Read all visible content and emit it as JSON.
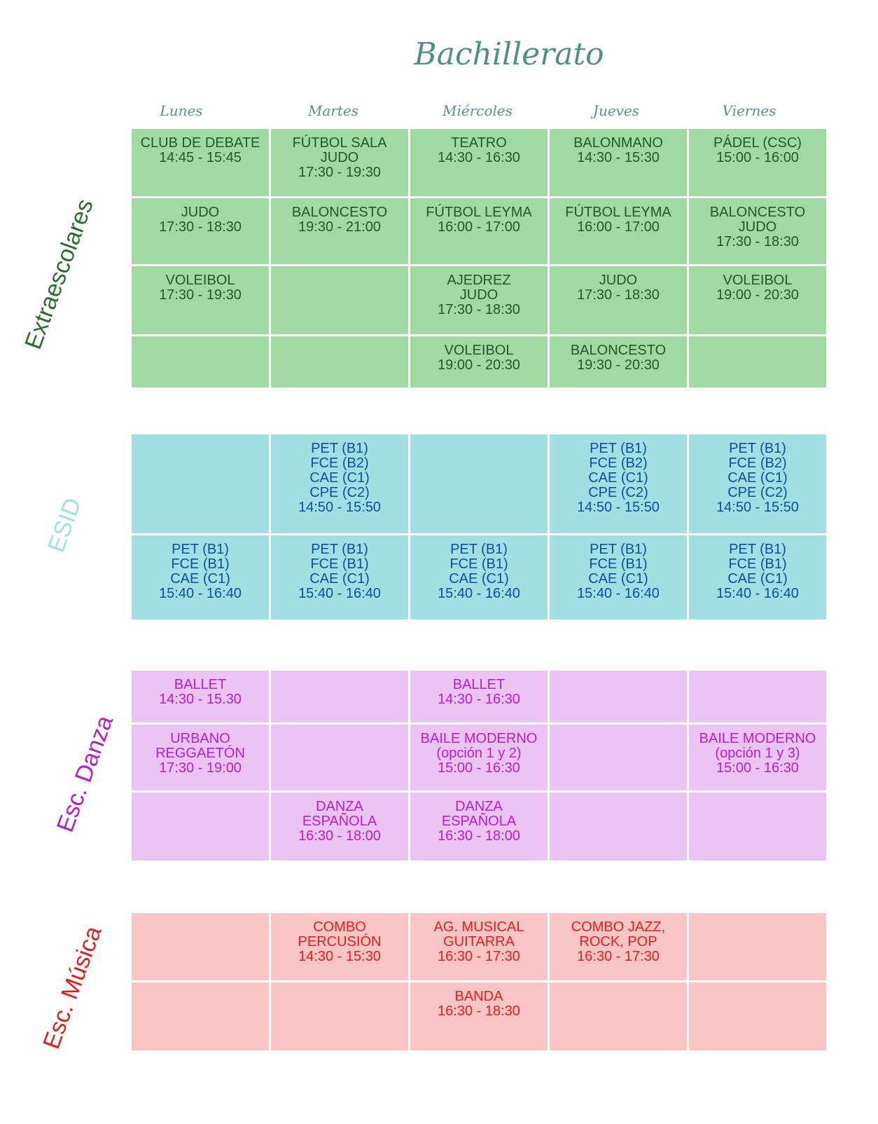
{
  "title": "Bachillerato",
  "days": [
    "Lunes",
    "Martes",
    "Miércoles",
    "Jueves",
    "Viernes"
  ],
  "sections": [
    {
      "name": "Extraescolares",
      "color": "#2e6b2e",
      "rows": [
        [
          "CLUB DE DEBATE\n14:45 - 15:45",
          "FÚTBOL SALA\nJUDO\n17:30 - 19:30",
          "TEATRO\n14:30 - 16:30",
          "BALONMANO\n14:30 - 15:30",
          "PÁDEL (CSC)\n15:00 - 16:00"
        ],
        [
          "JUDO\n17:30 - 18:30",
          "BALONCESTO\n19:30 - 21:00",
          "FÚTBOL LEYMA\n16:00 - 17:00",
          "FÚTBOL LEYMA\n16:00 - 17:00",
          "BALONCESTO\nJUDO\n17:30 - 18:30"
        ],
        [
          "VOLEIBOL\n17:30 - 19:30",
          "",
          "AJEDREZ\nJUDO\n17:30 - 18:30",
          "JUDO\n17:30 - 18:30",
          "VOLEIBOL\n19:00 - 20:30"
        ],
        [
          "",
          "",
          "VOLEIBOL\n19:00 - 20:30",
          "BALONCESTO\n19:30 - 20:30",
          ""
        ]
      ]
    },
    {
      "name": "ESID",
      "color": "#a2dfe2",
      "rows": [
        [
          "",
          "PET (B1)\nFCE (B2)\nCAE (C1)\nCPE (C2)\n14:50 - 15:50",
          "",
          "PET (B1)\nFCE (B2)\nCAE (C1)\nCPE (C2)\n14:50 - 15:50",
          "PET (B1)\nFCE (B2)\nCAE (C1)\nCPE (C2)\n14:50 - 15:50"
        ],
        [
          "PET (B1)\nFCE (B1)\nCAE (C1)\n15:40 - 16:40",
          "PET (B1)\nFCE (B1)\nCAE (C1)\n15:40 - 16:40",
          "PET (B1)\nFCE (B1)\nCAE (C1)\n15:40 - 16:40",
          "PET (B1)\nFCE (B1)\nCAE (C1)\n15:40 - 16:40",
          "PET (B1)\nFCE (B1)\nCAE (C1)\n15:40 - 16:40"
        ]
      ]
    },
    {
      "name": "Esc. Danza",
      "color": "#b21ecf",
      "rows": [
        [
          "BALLET\n14:30 - 15.30",
          "",
          "BALLET\n14:30 - 16:30",
          "",
          ""
        ],
        [
          "URBANO\nREGGAETÓN\n17:30 - 19:00",
          "",
          "BAILE MODERNO\n(opción 1 y 2)\n15:00 - 16:30",
          "",
          "BAILE MODERNO\n(opción 1 y 3)\n15:00 - 16:30"
        ],
        [
          "",
          "DANZA\nESPAÑOLA\n16:30 - 18:00",
          "DANZA\nESPAÑOLA\n16:30 - 18:00",
          "",
          ""
        ]
      ]
    },
    {
      "name": "Esc. Música",
      "color": "#e01e1e",
      "rows": [
        [
          "",
          "COMBO\nPERCUSIÓN\n14:30 - 15:30",
          "AG. MUSICAL\nGUITARRA\n16:30 - 17:30",
          "COMBO JAZZ,\nROCK, POP\n16:30 - 17:30",
          ""
        ],
        [
          "",
          "",
          "BANDA\n16:30 - 18:30",
          "",
          ""
        ]
      ]
    }
  ]
}
